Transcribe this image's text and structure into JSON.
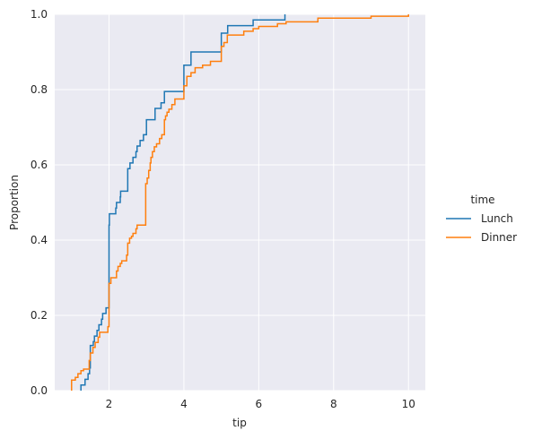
{
  "chart_data": {
    "type": "line",
    "subtype": "ecdf",
    "xlabel": "tip",
    "ylabel": "Proportion",
    "xlim": [
      0.55,
      10.45
    ],
    "ylim": [
      0,
      1
    ],
    "xticks": [
      2,
      4,
      6,
      8,
      10
    ],
    "yticks": [
      0,
      0.2,
      0.4,
      0.6,
      0.8,
      1.0
    ],
    "grid": true,
    "legend": {
      "title": "time",
      "placement": "right",
      "entries": [
        "Lunch",
        "Dinner"
      ]
    },
    "series": [
      {
        "name": "Lunch",
        "color": "#1f77b4",
        "points": [
          [
            1.25,
            0.0
          ],
          [
            1.25,
            0.015
          ],
          [
            1.36,
            0.015
          ],
          [
            1.36,
            0.03
          ],
          [
            1.44,
            0.03
          ],
          [
            1.44,
            0.045
          ],
          [
            1.48,
            0.045
          ],
          [
            1.48,
            0.06
          ],
          [
            1.5,
            0.06
          ],
          [
            1.5,
            0.12
          ],
          [
            1.58,
            0.12
          ],
          [
            1.58,
            0.13
          ],
          [
            1.61,
            0.13
          ],
          [
            1.61,
            0.145
          ],
          [
            1.68,
            0.145
          ],
          [
            1.68,
            0.16
          ],
          [
            1.73,
            0.16
          ],
          [
            1.73,
            0.175
          ],
          [
            1.8,
            0.175
          ],
          [
            1.8,
            0.19
          ],
          [
            1.83,
            0.19
          ],
          [
            1.83,
            0.205
          ],
          [
            1.92,
            0.205
          ],
          [
            1.92,
            0.22
          ],
          [
            2.0,
            0.22
          ],
          [
            2.0,
            0.44
          ],
          [
            2.01,
            0.44
          ],
          [
            2.01,
            0.47
          ],
          [
            2.18,
            0.47
          ],
          [
            2.18,
            0.485
          ],
          [
            2.2,
            0.485
          ],
          [
            2.2,
            0.5
          ],
          [
            2.3,
            0.5
          ],
          [
            2.3,
            0.515
          ],
          [
            2.31,
            0.515
          ],
          [
            2.31,
            0.53
          ],
          [
            2.5,
            0.53
          ],
          [
            2.5,
            0.59
          ],
          [
            2.56,
            0.59
          ],
          [
            2.56,
            0.605
          ],
          [
            2.64,
            0.605
          ],
          [
            2.64,
            0.62
          ],
          [
            2.72,
            0.62
          ],
          [
            2.72,
            0.635
          ],
          [
            2.75,
            0.635
          ],
          [
            2.75,
            0.65
          ],
          [
            2.83,
            0.65
          ],
          [
            2.83,
            0.665
          ],
          [
            2.92,
            0.665
          ],
          [
            2.92,
            0.68
          ],
          [
            3.0,
            0.68
          ],
          [
            3.0,
            0.72
          ],
          [
            3.23,
            0.72
          ],
          [
            3.23,
            0.75
          ],
          [
            3.39,
            0.75
          ],
          [
            3.39,
            0.765
          ],
          [
            3.48,
            0.765
          ],
          [
            3.48,
            0.795
          ],
          [
            4.0,
            0.795
          ],
          [
            4.0,
            0.865
          ],
          [
            4.19,
            0.865
          ],
          [
            4.19,
            0.9
          ],
          [
            5.0,
            0.9
          ],
          [
            5.0,
            0.95
          ],
          [
            5.17,
            0.95
          ],
          [
            5.17,
            0.97
          ],
          [
            5.85,
            0.97
          ],
          [
            5.85,
            0.985
          ],
          [
            6.7,
            0.985
          ],
          [
            6.7,
            1.0
          ]
        ]
      },
      {
        "name": "Dinner",
        "color": "#ff7f0e",
        "points": [
          [
            1.0,
            0.0
          ],
          [
            1.0,
            0.028
          ],
          [
            1.1,
            0.028
          ],
          [
            1.1,
            0.035
          ],
          [
            1.17,
            0.035
          ],
          [
            1.17,
            0.045
          ],
          [
            1.25,
            0.045
          ],
          [
            1.25,
            0.053
          ],
          [
            1.32,
            0.053
          ],
          [
            1.32,
            0.057
          ],
          [
            1.47,
            0.057
          ],
          [
            1.47,
            0.08
          ],
          [
            1.5,
            0.08
          ],
          [
            1.5,
            0.1
          ],
          [
            1.57,
            0.1
          ],
          [
            1.57,
            0.115
          ],
          [
            1.63,
            0.115
          ],
          [
            1.63,
            0.128
          ],
          [
            1.71,
            0.128
          ],
          [
            1.71,
            0.142
          ],
          [
            1.75,
            0.142
          ],
          [
            1.75,
            0.155
          ],
          [
            1.97,
            0.155
          ],
          [
            1.97,
            0.17
          ],
          [
            2.0,
            0.17
          ],
          [
            2.0,
            0.285
          ],
          [
            2.05,
            0.285
          ],
          [
            2.05,
            0.3
          ],
          [
            2.2,
            0.3
          ],
          [
            2.2,
            0.318
          ],
          [
            2.24,
            0.318
          ],
          [
            2.24,
            0.33
          ],
          [
            2.3,
            0.33
          ],
          [
            2.3,
            0.338
          ],
          [
            2.34,
            0.338
          ],
          [
            2.34,
            0.345
          ],
          [
            2.47,
            0.345
          ],
          [
            2.47,
            0.36
          ],
          [
            2.5,
            0.36
          ],
          [
            2.5,
            0.392
          ],
          [
            2.55,
            0.392
          ],
          [
            2.55,
            0.405
          ],
          [
            2.6,
            0.405
          ],
          [
            2.6,
            0.41
          ],
          [
            2.64,
            0.41
          ],
          [
            2.64,
            0.418
          ],
          [
            2.72,
            0.418
          ],
          [
            2.72,
            0.43
          ],
          [
            2.75,
            0.43
          ],
          [
            2.75,
            0.44
          ],
          [
            2.98,
            0.44
          ],
          [
            2.98,
            0.55
          ],
          [
            3.02,
            0.55
          ],
          [
            3.02,
            0.565
          ],
          [
            3.06,
            0.565
          ],
          [
            3.06,
            0.585
          ],
          [
            3.1,
            0.585
          ],
          [
            3.1,
            0.605
          ],
          [
            3.12,
            0.605
          ],
          [
            3.12,
            0.62
          ],
          [
            3.16,
            0.62
          ],
          [
            3.16,
            0.635
          ],
          [
            3.21,
            0.635
          ],
          [
            3.21,
            0.648
          ],
          [
            3.27,
            0.648
          ],
          [
            3.27,
            0.656
          ],
          [
            3.35,
            0.656
          ],
          [
            3.35,
            0.67
          ],
          [
            3.41,
            0.67
          ],
          [
            3.41,
            0.68
          ],
          [
            3.48,
            0.68
          ],
          [
            3.48,
            0.72
          ],
          [
            3.51,
            0.72
          ],
          [
            3.51,
            0.73
          ],
          [
            3.55,
            0.73
          ],
          [
            3.55,
            0.74
          ],
          [
            3.6,
            0.74
          ],
          [
            3.6,
            0.748
          ],
          [
            3.68,
            0.748
          ],
          [
            3.68,
            0.76
          ],
          [
            3.76,
            0.76
          ],
          [
            3.76,
            0.775
          ],
          [
            4.0,
            0.775
          ],
          [
            4.0,
            0.81
          ],
          [
            4.08,
            0.81
          ],
          [
            4.08,
            0.835
          ],
          [
            4.19,
            0.835
          ],
          [
            4.19,
            0.845
          ],
          [
            4.3,
            0.845
          ],
          [
            4.3,
            0.858
          ],
          [
            4.5,
            0.858
          ],
          [
            4.5,
            0.865
          ],
          [
            4.71,
            0.865
          ],
          [
            4.71,
            0.875
          ],
          [
            5.0,
            0.875
          ],
          [
            5.0,
            0.915
          ],
          [
            5.07,
            0.915
          ],
          [
            5.07,
            0.925
          ],
          [
            5.16,
            0.925
          ],
          [
            5.16,
            0.945
          ],
          [
            5.6,
            0.945
          ],
          [
            5.6,
            0.955
          ],
          [
            5.85,
            0.955
          ],
          [
            5.85,
            0.962
          ],
          [
            6.0,
            0.962
          ],
          [
            6.0,
            0.968
          ],
          [
            6.5,
            0.968
          ],
          [
            6.5,
            0.975
          ],
          [
            6.73,
            0.975
          ],
          [
            6.73,
            0.98
          ],
          [
            7.58,
            0.98
          ],
          [
            7.58,
            0.99
          ],
          [
            9.0,
            0.99
          ],
          [
            9.0,
            0.995
          ],
          [
            10.0,
            0.995
          ],
          [
            10.0,
            1.0
          ]
        ]
      }
    ]
  }
}
